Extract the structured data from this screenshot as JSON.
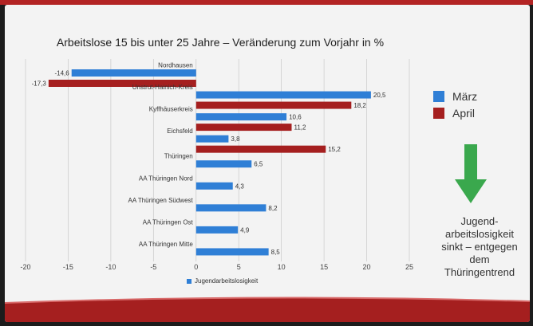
{
  "chart_data": {
    "type": "bar",
    "orientation": "horizontal",
    "title": "Arbeitslose 15 bis unter 25 Jahre – Veränderung zum Vorjahr in %",
    "categories": [
      "Nordhausen",
      "Unstrut-Hainich-Kreis",
      "Kyffhäuserkreis",
      "Eichsfeld",
      "Thüringen",
      "AA Thüringen Nord",
      "AA Thüringen Südwest",
      "AA Thüringen Ost",
      "AA Thüringen Mitte"
    ],
    "series": [
      {
        "name": "März",
        "color": "#2f7fd6",
        "values": [
          -14.6,
          20.5,
          10.6,
          3.8,
          6.5,
          4.3,
          8.2,
          4.9,
          8.5
        ]
      },
      {
        "name": "April",
        "color": "#a51f1f",
        "values": [
          -17.3,
          18.2,
          11.2,
          15.2,
          null,
          null,
          null,
          null,
          null
        ]
      }
    ],
    "value_labels": {
      "März": [
        "-14,6",
        "20,5",
        "10,6",
        "3,8",
        "6,5",
        "4,3",
        "8,2",
        "4,9",
        "8,5"
      ],
      "April": [
        "-17,3",
        "18,2",
        "11,2",
        "15,2",
        "",
        "",
        "",
        "",
        ""
      ]
    },
    "xlim": [
      -20,
      25
    ],
    "x_ticks": [
      "-20",
      "-15",
      "-10",
      "-5",
      "0",
      "5",
      "10",
      "15",
      "20",
      "25"
    ],
    "grid": true,
    "legend_placement": "right"
  },
  "legend": {
    "maerz": "März",
    "april": "April"
  },
  "bottom_legend": "Jugendarbeitslosigkeit",
  "note": "Jugend-arbeitslosigkeit sinkt – entgegen dem Thüringentrend",
  "colors": {
    "arrow": "#3aa84d",
    "frame": "#b32424"
  }
}
